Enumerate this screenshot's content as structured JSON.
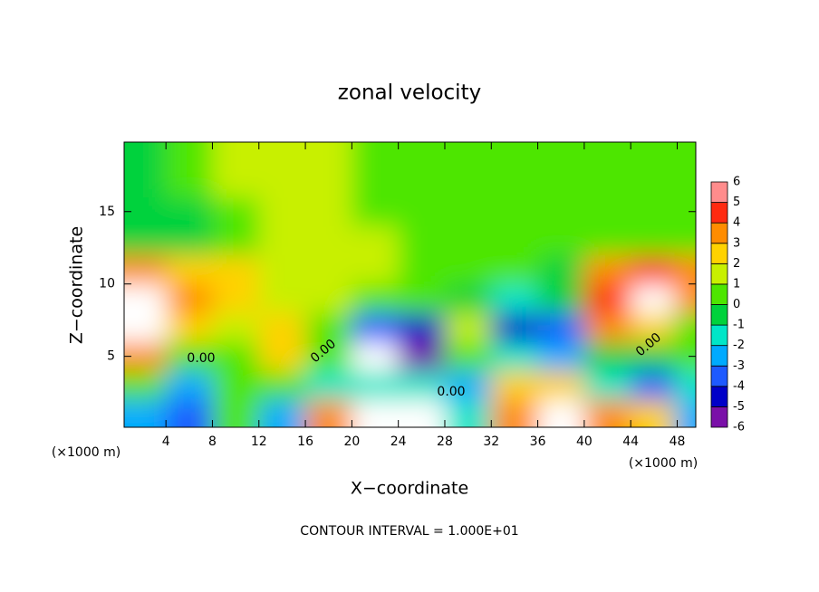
{
  "chart_data": {
    "type": "contour",
    "title": "zonal velocity",
    "xlabel": "X−coordinate",
    "ylabel": "Z−coordinate",
    "x_unit_label": "(×1000 m)",
    "footer": "CONTOUR INTERVAL = 1.000E+01",
    "contour_labels": [
      "0.00",
      "0.00",
      "0.00",
      "0.00"
    ],
    "xlim": [
      0.4,
      49.6
    ],
    "ylim": [
      0.1,
      19.8
    ],
    "xticks": [
      4,
      8,
      12,
      16,
      20,
      24,
      28,
      32,
      36,
      40,
      44,
      48
    ],
    "yticks": [
      5,
      10,
      15
    ],
    "x": [
      2,
      6,
      10,
      14,
      18,
      22,
      26,
      30,
      34,
      38,
      42,
      46,
      49.5
    ],
    "y": [
      1,
      3,
      5,
      7,
      9,
      11,
      13,
      15,
      17,
      19
    ],
    "z": [
      [
        -2,
        -3,
        1,
        -2,
        4,
        7,
        7,
        -1,
        4,
        7,
        4,
        3,
        -2
      ],
      [
        0.5,
        -2,
        0.5,
        1,
        -1,
        -1,
        -1,
        -2,
        3,
        3,
        -1,
        -3,
        -1
      ],
      [
        4,
        1,
        1,
        2.5,
        0.5,
        7,
        -5,
        1,
        -1,
        -2,
        -0.5,
        -0.5,
        0.5
      ],
      [
        7,
        3,
        1.5,
        2.5,
        1,
        -3,
        -4,
        2,
        -4,
        -3,
        4,
        3,
        0.5
      ],
      [
        7,
        4,
        2.5,
        2,
        1.5,
        1,
        0.5,
        -0.5,
        -1,
        -0.5,
        5,
        7,
        4
      ],
      [
        4,
        3,
        2.5,
        2,
        1.5,
        1.5,
        0.5,
        0.5,
        0.5,
        -0.5,
        4,
        5,
        4
      ],
      [
        -0.5,
        -0.5,
        1,
        1.5,
        1.5,
        1.2,
        0.5,
        0.5,
        0.5,
        0.5,
        0.5,
        0.5,
        0.5
      ],
      [
        -0.5,
        -0.3,
        1,
        1.3,
        1.3,
        1,
        0.5,
        0.5,
        0.5,
        0.5,
        0.5,
        0.5,
        0.5
      ],
      [
        -0.5,
        0.8,
        1.2,
        1.2,
        1.2,
        1,
        0.5,
        0.5,
        0.5,
        0.5,
        0.5,
        0.5,
        0.5
      ],
      [
        -0.5,
        1,
        1.2,
        1.2,
        1.2,
        1,
        0.5,
        0.5,
        0.5,
        0.5,
        0.5,
        0.5,
        0.5
      ]
    ],
    "levels": [
      -6,
      -5,
      -4,
      -3,
      -2,
      -1,
      0,
      1,
      2,
      3,
      4,
      5,
      6
    ],
    "colors": [
      "#7a10a8",
      "#0000c8",
      "#1e5aff",
      "#00aaff",
      "#00e6c8",
      "#00d23c",
      "#4ee600",
      "#c8f000",
      "#ffd200",
      "#ff8c00",
      "#ff2a10",
      "#ff8c8c"
    ]
  }
}
